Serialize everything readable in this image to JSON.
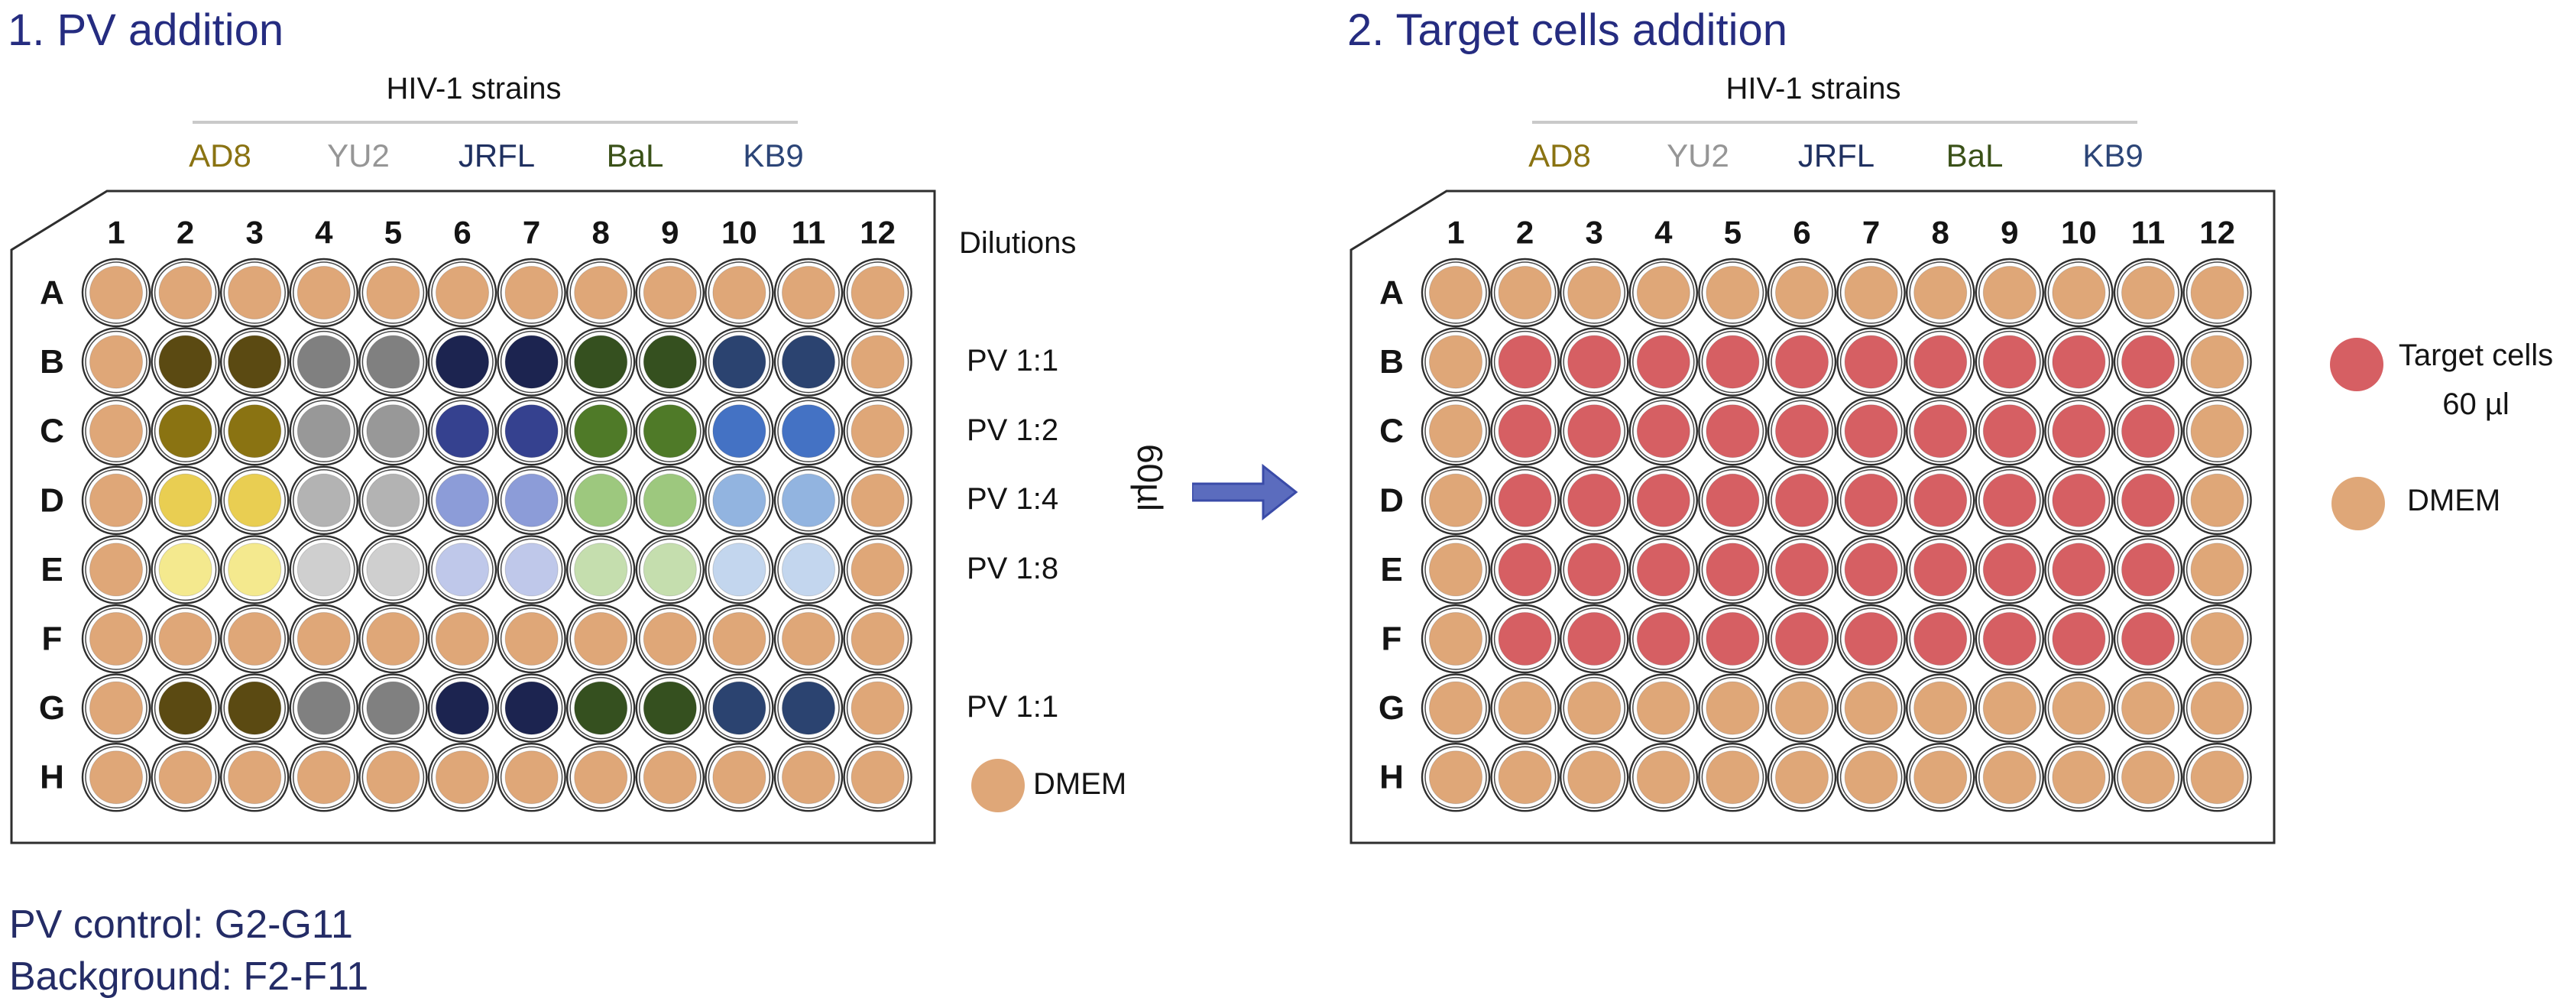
{
  "palette": {
    "title_color": "#252C80",
    "note_color": "#242C66",
    "text_color": "#141414",
    "plate_stroke": "#2E2E2E",
    "strain_line": "#C9C9C9",
    "arrow_fill": "#5B6CBE",
    "arrow_stroke": "#3A4BA8",
    "strain_colors": {
      "AD8": "#8A7312",
      "YU2": "#969696",
      "JRFL": "#1F3060",
      "BaL": "#3A5118",
      "KB9": "#2C4577"
    },
    "well_colors": {
      "D": "#DFA778",
      "R": "#D65F63",
      "A1": "#5B4A12",
      "A2": "#8A7312",
      "A3": "#E9CE52",
      "A4": "#F4E98E",
      "Y1": "#808080",
      "Y2": "#989898",
      "Y3": "#B3B3B3",
      "Y4": "#CFCFCF",
      "J1": "#1C2450",
      "J2": "#35418F",
      "J3": "#8C9CD8",
      "J4": "#BFC8EA",
      "B1": "#35501F",
      "B2": "#4F7A28",
      "B3": "#9DC87E",
      "B4": "#C5DEAE",
      "K1": "#2B4370",
      "K2": "#4472C4",
      "K3": "#92B4E0",
      "K4": "#C3D6EE"
    }
  },
  "left_panel": {
    "title": "1. PV addition",
    "strains_header": "HIV-1 strains",
    "strains": [
      "AD8",
      "YU2",
      "JRFL",
      "BaL",
      "KB9"
    ],
    "plate": {
      "columns": [
        "1",
        "2",
        "3",
        "4",
        "5",
        "6",
        "7",
        "8",
        "9",
        "10",
        "11",
        "12"
      ],
      "rows": [
        "A",
        "B",
        "C",
        "D",
        "E",
        "F",
        "G",
        "H"
      ],
      "wells": [
        [
          "D",
          "D",
          "D",
          "D",
          "D",
          "D",
          "D",
          "D",
          "D",
          "D",
          "D",
          "D"
        ],
        [
          "D",
          "A1",
          "A1",
          "Y1",
          "Y1",
          "J1",
          "J1",
          "B1",
          "B1",
          "K1",
          "K1",
          "D"
        ],
        [
          "D",
          "A2",
          "A2",
          "Y2",
          "Y2",
          "J2",
          "J2",
          "B2",
          "B2",
          "K2",
          "K2",
          "D"
        ],
        [
          "D",
          "A3",
          "A3",
          "Y3",
          "Y3",
          "J3",
          "J3",
          "B3",
          "B3",
          "K3",
          "K3",
          "D"
        ],
        [
          "D",
          "A4",
          "A4",
          "Y4",
          "Y4",
          "J4",
          "J4",
          "B4",
          "B4",
          "K4",
          "K4",
          "D"
        ],
        [
          "D",
          "D",
          "D",
          "D",
          "D",
          "D",
          "D",
          "D",
          "D",
          "D",
          "D",
          "D"
        ],
        [
          "D",
          "A1",
          "A1",
          "Y1",
          "Y1",
          "J1",
          "J1",
          "B1",
          "B1",
          "K1",
          "K1",
          "D"
        ],
        [
          "D",
          "D",
          "D",
          "D",
          "D",
          "D",
          "D",
          "D",
          "D",
          "D",
          "D",
          "D"
        ]
      ]
    },
    "dilutions": {
      "header": "Dilutions",
      "row_b": "PV 1:1",
      "row_c": "PV 1:2",
      "row_d": "PV 1:4",
      "row_e": "PV 1:8",
      "row_g": "PV 1:1",
      "dmem": "DMEM"
    }
  },
  "transfer": {
    "volume": "60µl"
  },
  "right_panel": {
    "title": "2. Target cells addition",
    "strains_header": "HIV-1 strains",
    "strains": [
      "AD8",
      "YU2",
      "JRFL",
      "BaL",
      "KB9"
    ],
    "plate": {
      "columns": [
        "1",
        "2",
        "3",
        "4",
        "5",
        "6",
        "7",
        "8",
        "9",
        "10",
        "11",
        "12"
      ],
      "rows": [
        "A",
        "B",
        "C",
        "D",
        "E",
        "F",
        "G",
        "H"
      ],
      "wells": [
        [
          "D",
          "D",
          "D",
          "D",
          "D",
          "D",
          "D",
          "D",
          "D",
          "D",
          "D",
          "D"
        ],
        [
          "D",
          "R",
          "R",
          "R",
          "R",
          "R",
          "R",
          "R",
          "R",
          "R",
          "R",
          "D"
        ],
        [
          "D",
          "R",
          "R",
          "R",
          "R",
          "R",
          "R",
          "R",
          "R",
          "R",
          "R",
          "D"
        ],
        [
          "D",
          "R",
          "R",
          "R",
          "R",
          "R",
          "R",
          "R",
          "R",
          "R",
          "R",
          "D"
        ],
        [
          "D",
          "R",
          "R",
          "R",
          "R",
          "R",
          "R",
          "R",
          "R",
          "R",
          "R",
          "D"
        ],
        [
          "D",
          "R",
          "R",
          "R",
          "R",
          "R",
          "R",
          "R",
          "R",
          "R",
          "R",
          "D"
        ],
        [
          "D",
          "D",
          "D",
          "D",
          "D",
          "D",
          "D",
          "D",
          "D",
          "D",
          "D",
          "D"
        ],
        [
          "D",
          "D",
          "D",
          "D",
          "D",
          "D",
          "D",
          "D",
          "D",
          "D",
          "D",
          "D"
        ]
      ]
    },
    "legend": {
      "target_label": "Target cells",
      "target_volume": "60 µl",
      "dmem_label": "DMEM"
    }
  },
  "notes": {
    "line1": "PV control: G2-G11",
    "line2": "Background: F2-F11"
  }
}
